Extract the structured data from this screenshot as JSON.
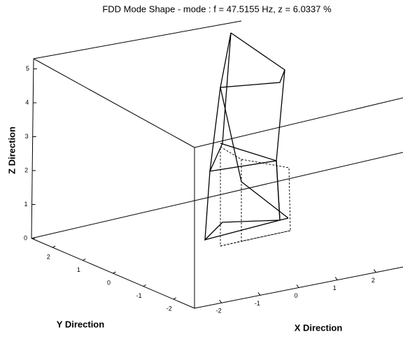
{
  "chart_data": {
    "type": "line3d",
    "title": "FDD Mode Shape - mode : f = 47.5155 Hz, z = 6.0337 %",
    "xlabel": "X Direction",
    "ylabel": "Y Direction",
    "zlabel": "Z Direction",
    "xlim": [
      -2.7,
      2.7
    ],
    "ylim": [
      -2.7,
      2.7
    ],
    "zlim": [
      0,
      5.3
    ],
    "xticks": [
      -2,
      -1,
      0,
      1,
      2
    ],
    "yticks": [
      -2,
      -1,
      0,
      1,
      2
    ],
    "zticks": [
      0,
      1,
      2,
      3,
      4,
      5
    ]
  }
}
